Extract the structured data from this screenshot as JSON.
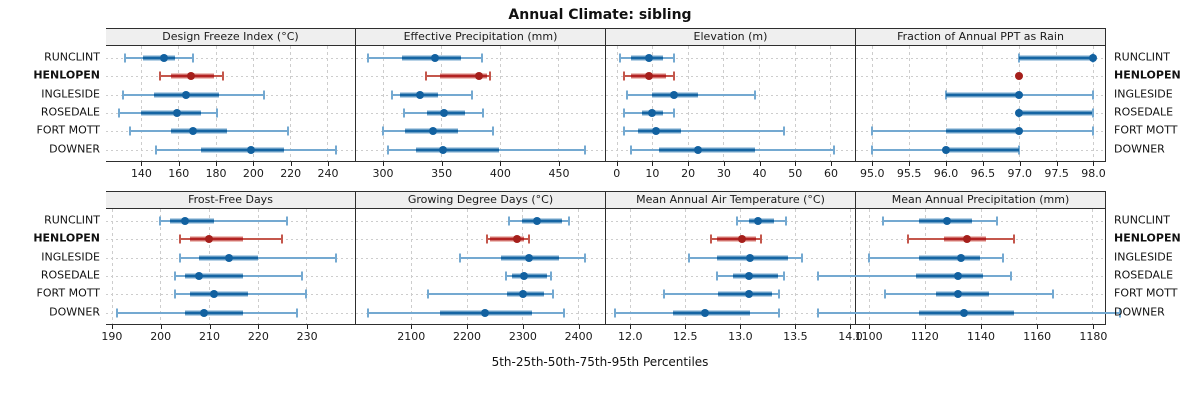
{
  "title": "Annual Climate: sibling",
  "caption": "5th-25th-50th-75th-95th Percentiles",
  "stations": [
    "RUNCLINT",
    "HENLOPEN",
    "INGLESIDE",
    "ROSEDALE",
    "FORT MOTT",
    "DOWNER"
  ],
  "highlight_station": "HENLOPEN",
  "colors": {
    "blue_tail": "#74a9d1",
    "blue_band": "#b8d2e6",
    "blue_core": "#1565a3",
    "blue_dot": "#1261a0",
    "red_tail": "#c4574c",
    "red_band": "#eec0ba",
    "red_core": "#b22222",
    "red_dot": "#a51f1b"
  },
  "chart_data": [
    {
      "type": "dotplot-percentiles",
      "panel_title": "Design Freeze Index (°C)",
      "xlim": [
        121,
        255
      ],
      "tick_values": [
        140,
        160,
        180,
        200,
        220,
        240
      ],
      "tick_labels": [
        "140",
        "160",
        "180",
        "200",
        "220",
        "240"
      ],
      "percentile_names": [
        "p5",
        "p25",
        "p50",
        "p75",
        "p95"
      ],
      "values": [
        [
          131,
          141,
          152,
          158,
          168
        ],
        [
          150,
          156,
          167,
          179,
          184
        ],
        [
          130,
          147,
          164,
          182,
          206
        ],
        [
          128,
          140,
          159,
          172,
          181
        ],
        [
          134,
          156,
          168,
          186,
          219
        ],
        [
          148,
          172,
          199,
          217,
          245
        ]
      ]
    },
    {
      "type": "dotplot-percentiles",
      "panel_title": "Effective Precipitation (mm)",
      "xlim": [
        277,
        490
      ],
      "tick_values": [
        300,
        350,
        400,
        450
      ],
      "tick_labels": [
        "300",
        "350",
        "400",
        "450"
      ],
      "values": [
        [
          287,
          316,
          345,
          367,
          385
        ],
        [
          337,
          349,
          382,
          389,
          392
        ],
        [
          308,
          315,
          332,
          347,
          376
        ],
        [
          318,
          338,
          352,
          370,
          386
        ],
        [
          300,
          319,
          343,
          364,
          394
        ],
        [
          304,
          328,
          351,
          399,
          473
        ]
      ]
    },
    {
      "type": "dotplot-percentiles",
      "panel_title": "Elevation (m)",
      "xlim": [
        -3,
        67
      ],
      "tick_values": [
        0,
        10,
        20,
        30,
        40,
        50,
        60
      ],
      "tick_labels": [
        "0",
        "10",
        "20",
        "30",
        "40",
        "50",
        "60"
      ],
      "values": [
        [
          1,
          4,
          9,
          13,
          16
        ],
        [
          2,
          4,
          9,
          14,
          16
        ],
        [
          3,
          10,
          16,
          23,
          39
        ],
        [
          2,
          7,
          10,
          13,
          16
        ],
        [
          2,
          6,
          11,
          18,
          47
        ],
        [
          4,
          12,
          23,
          39,
          61
        ]
      ]
    },
    {
      "type": "dotplot-percentiles",
      "panel_title": "Fraction of Annual PPT as Rain",
      "xlim": [
        94.78,
        98.17
      ],
      "tick_values": [
        95.0,
        95.5,
        96.0,
        96.5,
        97.0,
        97.5,
        98.0
      ],
      "tick_labels": [
        "95.0",
        "95.5",
        "96.0",
        "96.5",
        "97.0",
        "97.5",
        "98.0"
      ],
      "values": [
        [
          97,
          97,
          98,
          98,
          98
        ],
        [
          97,
          97,
          97,
          97,
          97
        ],
        [
          96,
          96,
          97,
          97,
          98
        ],
        [
          97,
          97,
          97,
          98,
          98
        ],
        [
          95,
          96,
          97,
          97,
          98
        ],
        [
          95,
          96,
          96,
          97,
          97
        ]
      ]
    },
    {
      "type": "dotplot-percentiles",
      "panel_title": "Frost-Free Days",
      "xlim": [
        188.8,
        240
      ],
      "tick_values": [
        190,
        200,
        210,
        220,
        230
      ],
      "tick_labels": [
        "190",
        "200",
        "210",
        "220",
        "230"
      ],
      "values": [
        [
          200,
          202,
          205,
          211,
          226
        ],
        [
          204,
          206,
          210,
          217,
          225
        ],
        [
          204,
          208,
          214,
          220,
          236
        ],
        [
          203,
          205,
          208,
          217,
          229
        ],
        [
          203,
          206,
          211,
          218,
          230
        ],
        [
          191,
          205,
          209,
          217,
          228
        ]
      ]
    },
    {
      "type": "dotplot-percentiles",
      "panel_title": "Growing Degree Days (°C)",
      "xlim": [
        2001,
        2449
      ],
      "tick_values": [
        2100,
        2200,
        2300,
        2400
      ],
      "tick_labels": [
        "2100",
        "2200",
        "2300",
        "2400"
      ],
      "values": [
        [
          2276,
          2300,
          2326,
          2372,
          2385
        ],
        [
          2236,
          2242,
          2290,
          2303,
          2312
        ],
        [
          2189,
          2261,
          2312,
          2366,
          2413
        ],
        [
          2270,
          2282,
          2304,
          2345,
          2352
        ],
        [
          2130,
          2273,
          2302,
          2339,
          2355
        ],
        [
          2023,
          2153,
          2233,
          2318,
          2376
        ]
      ]
    },
    {
      "type": "dotplot-percentiles",
      "panel_title": "Mean Annual Air Temperature (°C)",
      "xlim": [
        11.78,
        14.05
      ],
      "tick_values": [
        12.0,
        12.5,
        13.0,
        13.5,
        14.0
      ],
      "tick_labels": [
        "12.0",
        "12.5",
        "13.0",
        "13.5",
        "14.0"
      ],
      "values": [
        [
          12.97,
          13.08,
          13.17,
          13.31,
          13.42
        ],
        [
          12.74,
          12.79,
          13.02,
          13.15,
          13.19
        ],
        [
          12.54,
          12.79,
          13.09,
          13.44,
          13.57
        ],
        [
          12.79,
          12.94,
          13.08,
          13.35,
          13.4
        ],
        [
          12.31,
          12.8,
          13.08,
          13.29,
          13.36
        ],
        [
          11.86,
          12.39,
          12.68,
          13.09,
          13.36
        ]
      ]
    },
    {
      "type": "dotplot-percentiles",
      "panel_title": "Mean Annual Precipitation (mm)",
      "xlim": [
        1095.5,
        1184.5
      ],
      "tick_values": [
        1100,
        1120,
        1140,
        1160,
        1180
      ],
      "tick_labels": [
        "1100",
        "1120",
        "1140",
        "1160",
        "1180"
      ],
      "values": [
        [
          1105,
          1118,
          1128,
          1137,
          1146
        ],
        [
          1114,
          1127,
          1135,
          1142,
          1152
        ],
        [
          1100,
          1118,
          1133,
          1140,
          1148
        ],
        [
          1082,
          1117,
          1132,
          1141,
          1151
        ],
        [
          1106,
          1124,
          1132,
          1143,
          1166
        ],
        [
          1082,
          1118,
          1134,
          1152,
          1190
        ]
      ]
    }
  ],
  "layout": {
    "row_tops_pct": [
      10.6,
      26.5,
      42.4,
      58.2,
      74.1,
      90.0
    ]
  }
}
